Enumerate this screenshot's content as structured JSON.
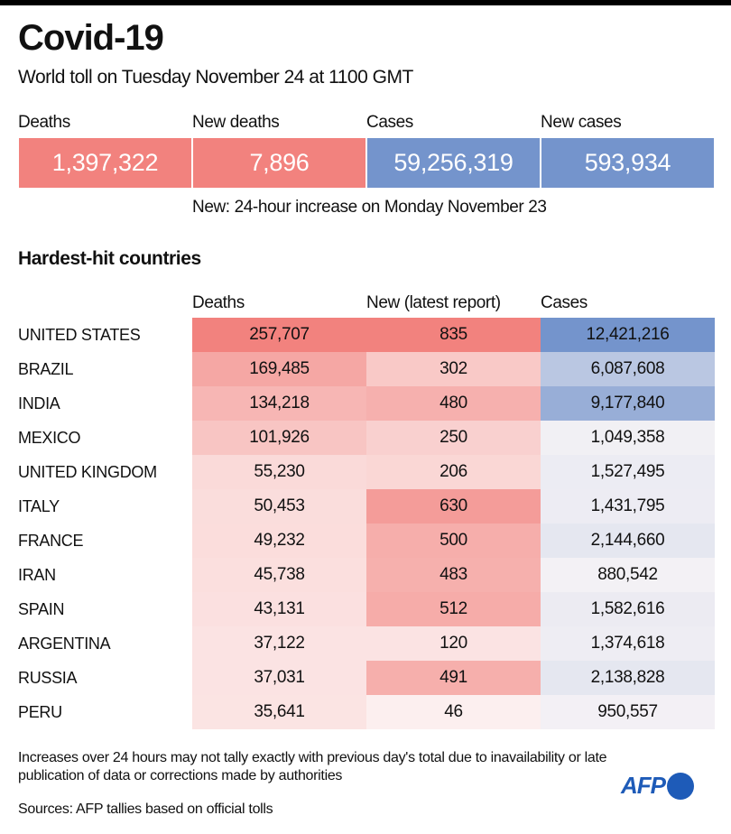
{
  "header": {
    "title": "Covid-19",
    "subtitle": "World toll on Tuesday November 24 at 1100 GMT"
  },
  "kpis": [
    {
      "label": "Deaths",
      "value": "1,397,322",
      "color": "#f2827e"
    },
    {
      "label": "New deaths",
      "value": "7,896",
      "color": "#f2827e"
    },
    {
      "label": "Cases",
      "value": "59,256,319",
      "color": "#7494cc"
    },
    {
      "label": "New cases",
      "value": "593,934",
      "color": "#7494cc"
    }
  ],
  "kpi_note": "New: 24-hour increase on Monday November 23",
  "chart_data": {
    "type": "table",
    "title": "Hardest-hit countries",
    "columns": [
      "Deaths",
      "New (latest report)",
      "Cases"
    ],
    "rows": [
      {
        "country": "UNITED STATES",
        "deaths": "257,707",
        "new": "835",
        "cases": "12,421,216"
      },
      {
        "country": "BRAZIL",
        "deaths": "169,485",
        "new": "302",
        "cases": "6,087,608"
      },
      {
        "country": "INDIA",
        "deaths": "134,218",
        "new": "480",
        "cases": "9,177,840"
      },
      {
        "country": "MEXICO",
        "deaths": "101,926",
        "new": "250",
        "cases": "1,049,358"
      },
      {
        "country": "UNITED KINGDOM",
        "deaths": "55,230",
        "new": "206",
        "cases": "1,527,495"
      },
      {
        "country": "ITALY",
        "deaths": "50,453",
        "new": "630",
        "cases": "1,431,795"
      },
      {
        "country": "FRANCE",
        "deaths": "49,232",
        "new": "500",
        "cases": "2,144,660"
      },
      {
        "country": "IRAN",
        "deaths": "45,738",
        "new": "483",
        "cases": "880,542"
      },
      {
        "country": "SPAIN",
        "deaths": "43,131",
        "new": "512",
        "cases": "1,582,616"
      },
      {
        "country": "ARGENTINA",
        "deaths": "37,122",
        "new": "120",
        "cases": "1,374,618"
      },
      {
        "country": "RUSSIA",
        "deaths": "37,031",
        "new": "491",
        "cases": "2,138,828"
      },
      {
        "country": "PERU",
        "deaths": "35,641",
        "new": "46",
        "cases": "950,557"
      }
    ],
    "colors": {
      "deaths": "#f2827e",
      "new": "#f2827e",
      "cases": "#7494cc"
    }
  },
  "footnote": "Increases over 24 hours may not tally exactly with previous day's total due to inavailability or late publication of data or corrections made by authorities",
  "source": "Sources: AFP tallies based on official tolls",
  "logo": {
    "text": "AFP",
    "color": "#1e5bb8"
  }
}
